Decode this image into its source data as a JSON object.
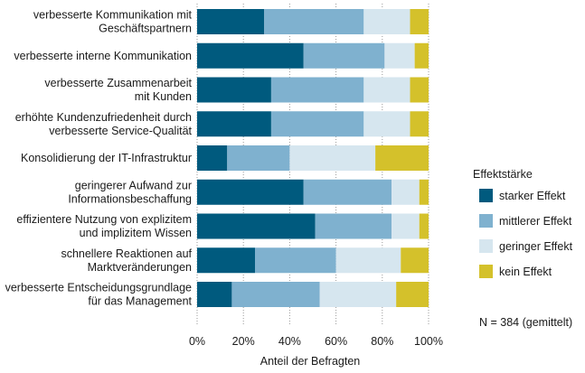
{
  "chart_data": {
    "type": "bar",
    "orientation": "horizontal",
    "stacked": true,
    "percent_stacked": true,
    "categories": [
      [
        "verbesserte Kommunikation mit",
        "Geschäftspartnern"
      ],
      [
        "verbesserte interne Kommunikation"
      ],
      [
        "verbesserte Zusammenarbeit",
        "mit Kunden"
      ],
      [
        "erhöhte Kundenzufriedenheit durch",
        "verbesserte Service-Qualität"
      ],
      [
        "Konsolidierung der IT-Infrastruktur"
      ],
      [
        "geringerer Aufwand zur",
        "Informationsbeschaffung"
      ],
      [
        "effizientere Nutzung von explizitem",
        "und implizitem Wissen"
      ],
      [
        "schnellere Reaktionen auf",
        "Marktveränderungen"
      ],
      [
        "verbesserte Entscheidungsgrundlage",
        "für das Management"
      ]
    ],
    "series": [
      {
        "name": "starker Effekt",
        "color": "#005a7e",
        "values": [
          29,
          46,
          32,
          32,
          13,
          46,
          51,
          25,
          15
        ]
      },
      {
        "name": "mittlerer Effekt",
        "color": "#7fb1cf",
        "values": [
          43,
          35,
          40,
          40,
          27,
          38,
          33,
          35,
          38
        ]
      },
      {
        "name": "geringer Effekt",
        "color": "#d6e6ef",
        "values": [
          20,
          13,
          20,
          20,
          37,
          12,
          12,
          28,
          33
        ]
      },
      {
        "name": "kein Effekt",
        "color": "#d4c12b",
        "values": [
          8,
          6,
          8,
          8,
          23,
          4,
          4,
          12,
          14
        ]
      }
    ],
    "xlabel": "Anteil der Befragten",
    "xlim": [
      0,
      100
    ],
    "xticks": [
      "0%",
      "20%",
      "40%",
      "60%",
      "80%",
      "100%"
    ],
    "legend_title": "Effektstärke",
    "legend_position": "right",
    "note": "N = 384 (gemittelt)",
    "grid": true
  }
}
